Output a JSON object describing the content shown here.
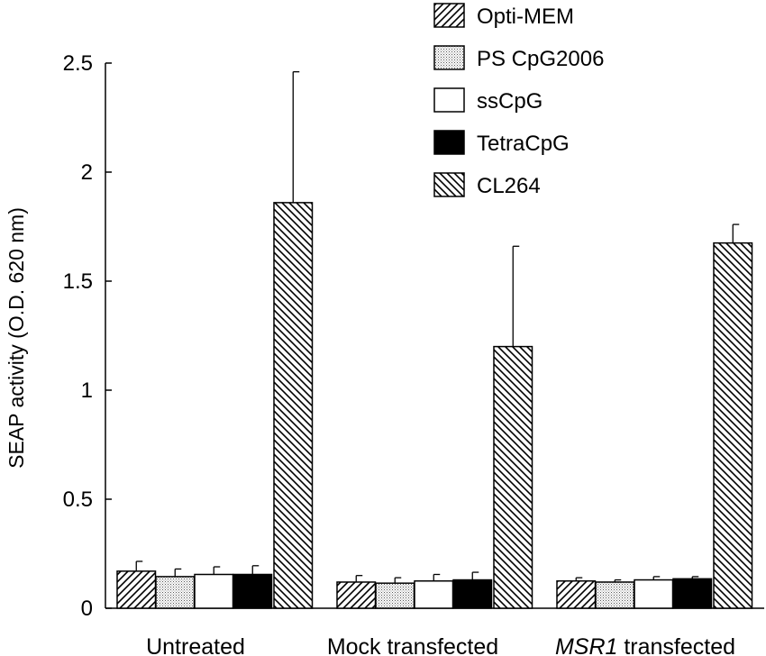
{
  "chart_data": {
    "type": "bar",
    "title": "",
    "xlabel": "",
    "ylabel": "SEAP activity (O.D. 620 nm)",
    "ylim": [
      0,
      2.5
    ],
    "yticks": [
      0,
      0.5,
      1,
      1.5,
      2,
      2.5
    ],
    "ytick_labels": [
      "0",
      "0.5",
      "1",
      "1.5",
      "2",
      "2.5"
    ],
    "categories": [
      {
        "italic": "",
        "rest": "Untreated"
      },
      {
        "italic": "",
        "rest": "Mock transfected"
      },
      {
        "italic": "MSR1",
        "rest": " transfected"
      }
    ],
    "series": [
      {
        "name": "Opti-MEM",
        "pattern": "diag-forward",
        "values": [
          0.17,
          0.12,
          0.125
        ],
        "errors": [
          0.045,
          0.03,
          0.015
        ]
      },
      {
        "name": "PS CpG2006",
        "pattern": "dots",
        "values": [
          0.145,
          0.115,
          0.12
        ],
        "errors": [
          0.035,
          0.025,
          0.01
        ]
      },
      {
        "name": "ssCpG",
        "pattern": "solid-white",
        "values": [
          0.155,
          0.125,
          0.13
        ],
        "errors": [
          0.035,
          0.03,
          0.015
        ]
      },
      {
        "name": "TetraCpG",
        "pattern": "solid-black",
        "values": [
          0.155,
          0.13,
          0.135
        ],
        "errors": [
          0.04,
          0.035,
          0.01
        ]
      },
      {
        "name": "CL264",
        "pattern": "diag-back",
        "values": [
          1.86,
          1.2,
          1.675
        ],
        "errors": [
          0.6,
          0.46,
          0.085
        ]
      }
    ],
    "legend_position": "top-right",
    "grid": false
  }
}
